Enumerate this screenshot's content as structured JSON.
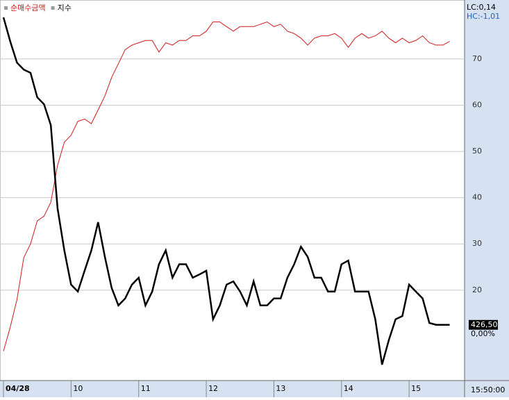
{
  "chart_data": {
    "type": "line",
    "series": [
      {
        "name": "순매수금액",
        "color": "#d01818",
        "values": [
          6.8,
          12,
          18,
          27,
          30,
          35,
          36,
          39,
          47,
          52,
          53.5,
          56.5,
          57,
          56,
          59,
          62,
          66,
          69,
          72,
          73,
          73.5,
          74,
          74,
          71.5,
          73.5,
          73,
          74,
          74,
          75,
          75,
          76,
          78,
          78,
          77,
          76,
          77,
          77,
          77,
          77.5,
          78,
          77,
          77.5,
          76,
          75.5,
          74.5,
          73,
          74.5,
          75,
          75,
          75.5,
          74.5,
          72.5,
          74.5,
          75.5,
          74.5,
          75,
          76,
          74.5,
          73.5,
          74.5,
          73.5,
          74,
          75,
          73.5,
          73,
          73,
          73.8
        ]
      },
      {
        "name": "지수",
        "color": "#000000",
        "values": [
          79,
          73.8,
          69.2,
          67.7,
          67,
          61.7,
          60.2,
          55.7,
          37.7,
          28.6,
          21.2,
          19.7,
          24.2,
          28.6,
          34.7,
          27.2,
          20.5,
          16.7,
          18.2,
          21.2,
          22.7,
          16.7,
          19.7,
          25.6,
          28.6,
          22.7,
          25.6,
          25.6,
          22.7,
          23.4,
          24.2,
          13.7,
          16.7,
          21.2,
          21.9,
          19.7,
          16.7,
          21.9,
          16.7,
          16.7,
          18.2,
          18.2,
          22.7,
          25.6,
          29.4,
          27.2,
          22.7,
          22.7,
          19.7,
          19.7,
          25.6,
          26.4,
          19.7,
          19.7,
          19.7,
          13.7,
          3.9,
          9.2,
          13.7,
          14.4,
          21.2,
          19.7,
          18.2,
          12.9,
          12.5,
          12.5,
          12.5
        ]
      }
    ],
    "x": [
      0,
      0.1,
      0.2,
      0.3,
      0.4,
      0.5,
      0.6,
      0.7,
      0.8,
      0.9,
      1,
      1.1,
      1.2,
      1.3,
      1.4,
      1.5,
      1.6,
      1.7,
      1.8,
      1.9,
      2,
      2.1,
      2.2,
      2.3,
      2.4,
      2.5,
      2.6,
      2.7,
      2.8,
      2.9,
      3,
      3.1,
      3.2,
      3.3,
      3.4,
      3.5,
      3.6,
      3.7,
      3.8,
      3.9,
      4,
      4.1,
      4.2,
      4.3,
      4.4,
      4.5,
      4.6,
      4.7,
      4.8,
      4.9,
      5,
      5.1,
      5.2,
      5.3,
      5.4,
      5.5,
      5.6,
      5.7,
      5.8,
      5.9,
      6,
      6.1,
      6.2,
      6.3,
      6.4,
      6.5,
      6.6
    ],
    "xlim": [
      0,
      6.81
    ],
    "xticks": [
      {
        "value": 0,
        "label": "04/28"
      },
      {
        "value": 1,
        "label": "10"
      },
      {
        "value": 2,
        "label": "11"
      },
      {
        "value": 3,
        "label": "12"
      },
      {
        "value": 4,
        "label": "13"
      },
      {
        "value": 5,
        "label": "14"
      },
      {
        "value": 6,
        "label": "15"
      }
    ],
    "ylim": [
      0.45,
      82
    ],
    "yticks": [
      20,
      30,
      40,
      50,
      60,
      70
    ],
    "grid": true,
    "lc_label": "LC:0,14",
    "hc_label": "HC:-1,01",
    "last_price_label": "426,50",
    "last_change_label": "0,00%",
    "time_label": "15:50:00"
  }
}
